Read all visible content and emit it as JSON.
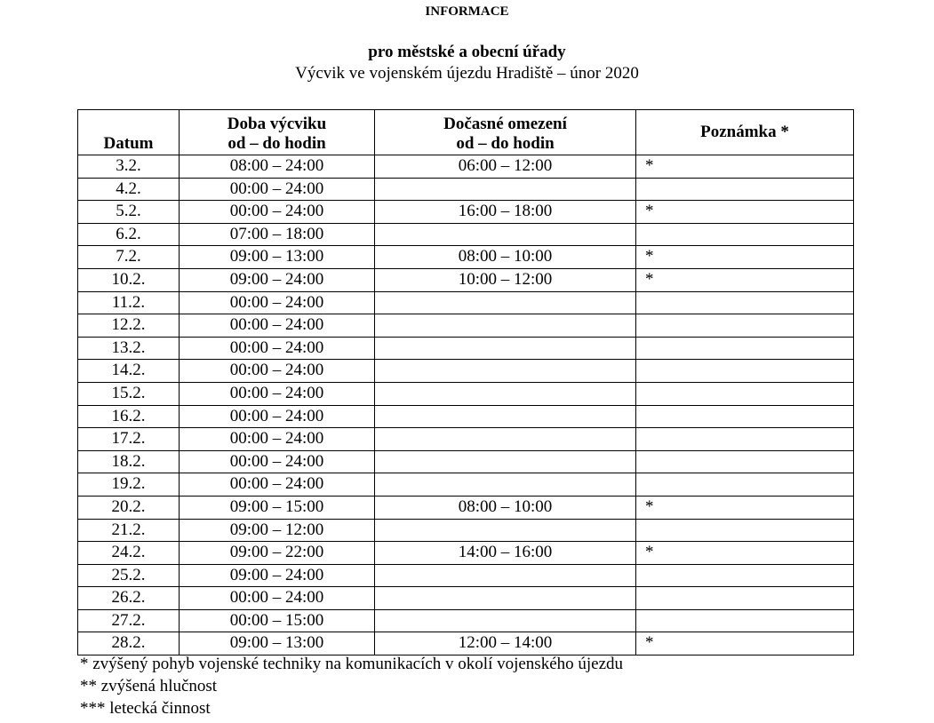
{
  "title": "INFORMACE",
  "subtitle": "pro městské a obecní úřady",
  "subtitle2": "Výcvik ve vojenském újezdu Hradiště – únor 2020",
  "table": {
    "headers": {
      "date": "Datum",
      "training_l1": "Doba výcviku",
      "training_l2": "od – do hodin",
      "restriction_l1": "Dočasné omezení",
      "restriction_l2": "od – do hodin",
      "note": "Poznámka *"
    },
    "rows": [
      [
        "3.2.",
        "08:00 – 24:00",
        "06:00 – 12:00",
        "*"
      ],
      [
        "4.2.",
        "00:00 – 24:00",
        "",
        ""
      ],
      [
        "5.2.",
        "00:00 – 24:00",
        "16:00 – 18:00",
        "*"
      ],
      [
        "6.2.",
        "07:00 – 18:00",
        "",
        ""
      ],
      [
        "7.2.",
        "09:00 – 13:00",
        "08:00 – 10:00",
        "*"
      ],
      [
        "10.2.",
        "09:00 – 24:00",
        "10:00 – 12:00",
        "*"
      ],
      [
        "11.2.",
        "00:00 – 24:00",
        "",
        ""
      ],
      [
        "12.2.",
        "00:00 – 24:00",
        "",
        ""
      ],
      [
        "13.2.",
        "00:00 – 24:00",
        "",
        ""
      ],
      [
        "14.2.",
        "00:00 – 24:00",
        "",
        ""
      ],
      [
        "15.2.",
        "00:00 – 24:00",
        "",
        ""
      ],
      [
        "16.2.",
        "00:00 – 24:00",
        "",
        ""
      ],
      [
        "17.2.",
        "00:00 – 24:00",
        "",
        ""
      ],
      [
        "18.2.",
        "00:00 – 24:00",
        "",
        ""
      ],
      [
        "19.2.",
        "00:00 – 24:00",
        "",
        ""
      ],
      [
        "20.2.",
        "09:00 – 15:00",
        "08:00 – 10:00",
        "*"
      ],
      [
        "21.2.",
        "09:00 – 12:00",
        "",
        ""
      ],
      [
        "24.2.",
        "09:00 – 22:00",
        "14:00 – 16:00",
        "*"
      ],
      [
        "25.2.",
        "09:00 – 24:00",
        "",
        ""
      ],
      [
        "26.2.",
        "00:00 – 24:00",
        "",
        ""
      ],
      [
        "27.2.",
        "00:00 – 15:00",
        "",
        ""
      ],
      [
        "28.2.",
        "09:00 – 13:00",
        "12:00 – 14:00",
        "*"
      ]
    ]
  },
  "footnotes": [
    "* zvýšený pohyb vojenské techniky na komunikacích v okolí vojenského újezdu",
    "** zvýšená hlučnost",
    "*** letecká činnost"
  ]
}
